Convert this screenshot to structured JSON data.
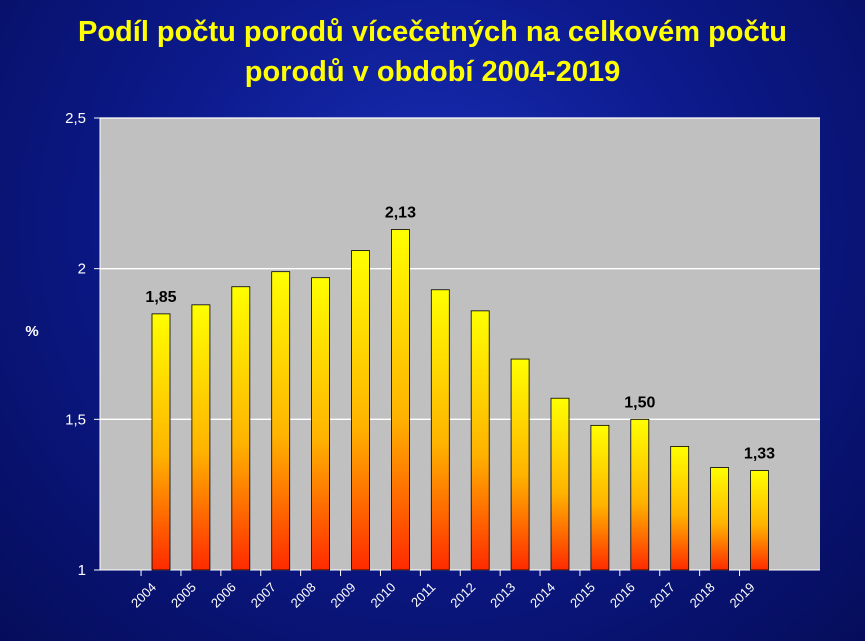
{
  "chart_data": {
    "type": "bar",
    "title_line1": "Podíl počtu porodů vícečetných na celkovém počtu",
    "title_line2": "porodů v období 2004-2019",
    "ylabel": "%",
    "xlabel": "",
    "categories": [
      "2004",
      "2005",
      "2006",
      "2007",
      "2008",
      "2009",
      "2010",
      "2011",
      "2012",
      "2013",
      "2014",
      "2015",
      "2016",
      "2017",
      "2018",
      "2019"
    ],
    "values": [
      1.85,
      1.88,
      1.94,
      1.99,
      1.97,
      2.06,
      2.13,
      1.93,
      1.86,
      1.7,
      1.57,
      1.48,
      1.5,
      1.41,
      1.34,
      1.33
    ],
    "data_labels": [
      {
        "category": "2004",
        "text": "1,85"
      },
      {
        "category": "2010",
        "text": "2,13"
      },
      {
        "category": "2016",
        "text": "1,50"
      },
      {
        "category": "2019",
        "text": "1,33"
      }
    ],
    "ylim": [
      1,
      2.5
    ],
    "yticks": [
      {
        "value": 1,
        "label": "1"
      },
      {
        "value": 1.5,
        "label": "1,5"
      },
      {
        "value": 2,
        "label": "2"
      },
      {
        "value": 2.5,
        "label": "2,5"
      }
    ],
    "grid": true,
    "legend": "none"
  },
  "colors": {
    "title": "#ffff00",
    "plot_background": "#c0c0c0",
    "gridline": "#ffffff",
    "bar_top": "#ffff00",
    "bar_bottom": "#ff2a00",
    "axis_text": "#ffffff",
    "data_label": "#000000"
  }
}
